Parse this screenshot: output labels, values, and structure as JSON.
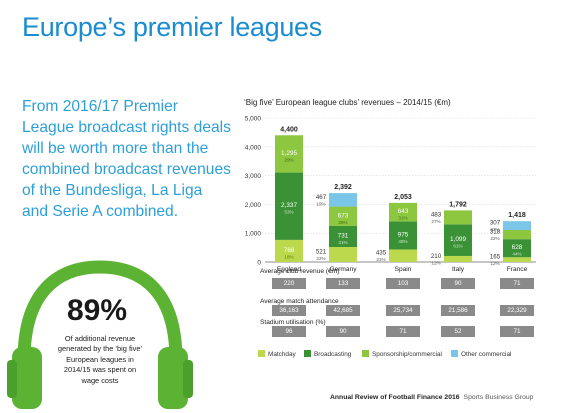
{
  "page_title": "Europe’s premier leagues",
  "intro_text": "From 2016/17 Premier League broadcast rights deals will be worth more than the combined broadcast revenues of the Bundesliga, La Liga and Serie A combined.",
  "stat": {
    "value": "89%",
    "text": "Of additional revenue generated by the ‘big five’ European leagues in 2014/15 was spent on wage costs"
  },
  "colors": {
    "matchday": "#bcd94d",
    "broadcasting": "#3b9136",
    "sponsorship": "#8dc63f",
    "other": "#7ac6e8",
    "accent": "#1a8ccf",
    "headset": "#5cb333",
    "grey_cell": "#8a8a8a"
  },
  "chart_data": {
    "type": "bar",
    "title": "‘Big five’ European league clubs’ revenues – 2014/15 (€m)",
    "categories": [
      "England",
      "Germany",
      "Spain",
      "Italy",
      "France"
    ],
    "ylim": [
      0,
      5000
    ],
    "yticks": [
      "0",
      "1,000",
      "2,000",
      "3,000",
      "4,000",
      "5,000"
    ],
    "grid": true,
    "stacked": true,
    "series": [
      {
        "name": "Matchday",
        "values": [
          768,
          521,
          435,
          210,
          165
        ],
        "pct": [
          "18%",
          "22%",
          "21%",
          "12%",
          "12%"
        ]
      },
      {
        "name": "Broadcasting",
        "values": [
          2337,
          731,
          975,
          1099,
          628
        ],
        "pct": [
          "53%",
          "31%",
          "48%",
          "61%",
          "44%"
        ]
      },
      {
        "name": "Sponsorship/commercial",
        "values": [
          1295,
          673,
          643,
          483,
          318
        ],
        "pct": [
          "29%",
          "28%",
          "31%",
          "27%",
          "22%"
        ]
      },
      {
        "name": "Other commercial",
        "values": [
          0,
          467,
          0,
          0,
          307
        ],
        "pct": [
          "",
          "19%",
          "",
          "",
          "22%"
        ]
      }
    ],
    "totals": [
      "4,400",
      "2,392",
      "2,053",
      "1,792",
      "1,418"
    ],
    "value_labels": [
      [
        "768",
        "2,337",
        "1,295",
        ""
      ],
      [
        "521",
        "731",
        "673",
        "467"
      ],
      [
        "435",
        "975",
        "643",
        ""
      ],
      [
        "210",
        "1,099",
        "483",
        ""
      ],
      [
        "165",
        "628",
        "318",
        "307"
      ]
    ]
  },
  "stats_table": {
    "rows": [
      {
        "label": "Average club revenue (€m)",
        "values": [
          "220",
          "133",
          "103",
          "90",
          "71"
        ]
      },
      {
        "label": "Average match attendance",
        "values": [
          "36,163",
          "42,685",
          "25,734",
          "21,586",
          "22,329"
        ]
      },
      {
        "label": "Stadium utilisation (%)",
        "values": [
          "96",
          "90",
          "71",
          "52",
          "71"
        ]
      }
    ]
  },
  "legend": [
    "Matchday",
    "Broadcasting",
    "Sponsorship/commercial",
    "Other commercial"
  ],
  "footer": {
    "report": "Annual Review of Football Finance 2016",
    "source": "Sports Business Group"
  }
}
